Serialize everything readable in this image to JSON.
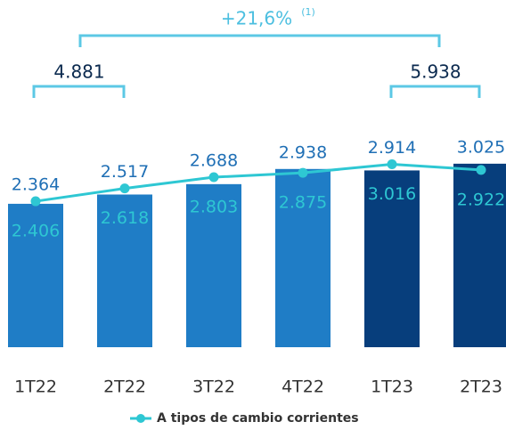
{
  "chart_data": {
    "type": "bar",
    "categories": [
      "1T22",
      "2T22",
      "3T22",
      "4T22",
      "1T23",
      "2T23"
    ],
    "ylim": [
      0,
      4300
    ],
    "series": [
      {
        "type": "bar",
        "colors": [
          "#1f7dc6",
          "#1f7dc6",
          "#1f7dc6",
          "#1f7dc6",
          "#073e7c",
          "#073e7c"
        ],
        "values": [
          2364,
          2517,
          2688,
          2938,
          2914,
          3025
        ],
        "value_labels": [
          "2.364",
          "2.517",
          "2.688",
          "2.938",
          "2.914",
          "3.025"
        ]
      },
      {
        "type": "line",
        "name": "A tipos de cambio corrientes",
        "color": "#2ec7d3",
        "values": [
          2406,
          2618,
          2803,
          2875,
          3016,
          2922
        ],
        "value_labels": [
          "2.406",
          "2.618",
          "2.803",
          "2.875",
          "3.016",
          "2.922"
        ]
      }
    ],
    "annotations": {
      "growth": "+21,6%",
      "note": "(1)",
      "sum_2022": "4.881",
      "sum_2023": "5.938"
    }
  }
}
